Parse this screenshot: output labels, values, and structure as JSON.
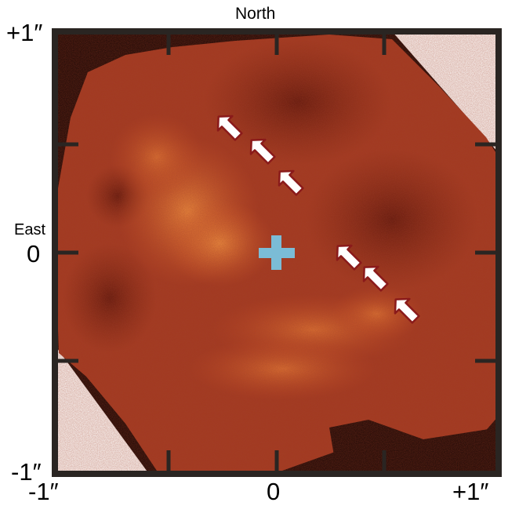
{
  "orientation": {
    "north": "North",
    "east": "East"
  },
  "y_ticks": {
    "top": "+1″",
    "mid": "0",
    "bottom": "-1″"
  },
  "x_ticks": {
    "left": "-1″",
    "center": "0",
    "right": "+1″"
  },
  "colors": {
    "frame": "#2a2522",
    "background_dark": "#1a0806",
    "map_base": "#9c3520",
    "map_dark": "#5a150c",
    "map_bright": "#e87a30",
    "cross": "#7bbcd6",
    "arrow_fill": "#ffffff",
    "arrow_outline": "#8a1a1a"
  },
  "markers": [
    {
      "type": "cross",
      "name": "center-cross"
    },
    {
      "type": "arrow",
      "count": 6,
      "direction": "south-west"
    }
  ]
}
